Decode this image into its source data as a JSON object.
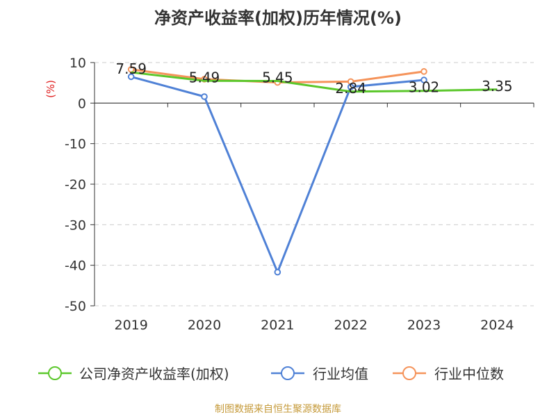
{
  "title": "净资产收益率(加权)历年情况(%)",
  "source": "制图数据来自恒生聚源数据库",
  "chart_data": {
    "type": "line",
    "ylabel": "(%)",
    "categories": [
      "2019",
      "2020",
      "2021",
      "2022",
      "2023",
      "2024"
    ],
    "yticks": [
      "10",
      "0",
      "-10",
      "-20",
      "-30",
      "-40",
      "-50"
    ],
    "ylim": [
      -50,
      10
    ],
    "grid": true,
    "legend_position": "bottom",
    "series": [
      {
        "name": "公司净资产收益率(加权)",
        "color": "#5bc72b",
        "values": [
          7.59,
          5.49,
          5.45,
          2.84,
          3.02,
          3.35
        ],
        "labels": [
          "7.59",
          "5.49",
          "5.45",
          "2.84",
          "3.02",
          "3.35"
        ],
        "markers": false
      },
      {
        "name": "行业均值",
        "color": "#4f81d6",
        "values": [
          6.5,
          1.6,
          -41.7,
          4.0,
          5.7,
          null
        ],
        "markers": true
      },
      {
        "name": "行业中位数",
        "color": "#f5935a",
        "values": [
          8.3,
          5.9,
          5.1,
          5.3,
          7.8,
          null
        ],
        "markers": true
      }
    ]
  }
}
